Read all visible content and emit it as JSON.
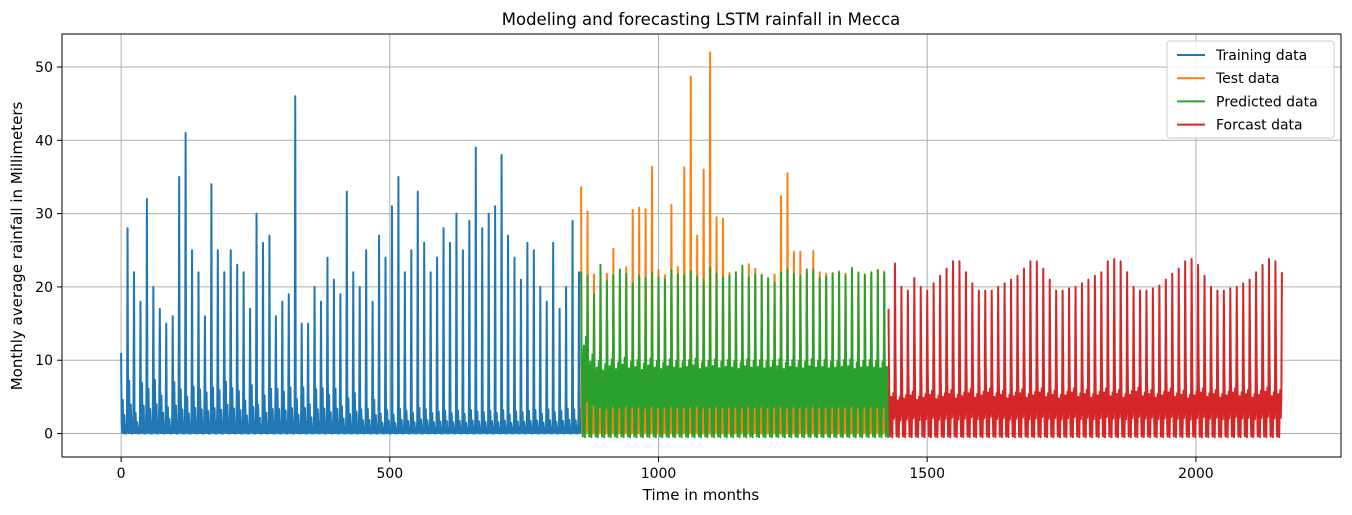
{
  "chart_data": {
    "type": "line",
    "title": "Modeling and forecasting LSTM  rainfall in Mecca",
    "xlabel": "Time in months",
    "ylabel": "Monthly average rainfall in Millimeters",
    "xlim": [
      -110,
      2270
    ],
    "ylim": [
      -3.2,
      54.5
    ],
    "xticks": [
      0,
      500,
      1000,
      1500,
      2000
    ],
    "yticks": [
      0,
      10,
      20,
      30,
      40,
      50
    ],
    "grid": true,
    "legend_position": "top-right",
    "period_months": 12,
    "series": [
      {
        "name": "Training data",
        "color": "#1f77b4",
        "x_range": [
          0,
          856
        ],
        "cycle_peaks": [
          11,
          28,
          22,
          18,
          32,
          20,
          17,
          15,
          16,
          35,
          41,
          25,
          22,
          16,
          34,
          25,
          22,
          25,
          23,
          22,
          17,
          30,
          26,
          27,
          16,
          18,
          19,
          46,
          15,
          15,
          20,
          18,
          24,
          21,
          19,
          33,
          22,
          20,
          25,
          18,
          27,
          24,
          31,
          35,
          22,
          25,
          33,
          26,
          22,
          24,
          28,
          26,
          30,
          25,
          29,
          39,
          28,
          30,
          31,
          38,
          27,
          24,
          21,
          26,
          25,
          20,
          18,
          26,
          17,
          20,
          29,
          22
        ],
        "cycle_secondary": [
          4.6,
          7.2,
          2.8,
          6.9,
          6.1,
          7.3,
          5.2,
          3.6,
          7.0,
          6.0,
          5.0,
          6.4,
          6.0,
          5.6,
          6.3,
          5.9,
          7.1,
          6.2,
          5.8,
          4.5,
          6.6,
          3.9,
          5.2,
          6.1,
          6.1,
          5.7,
          6.3,
          4.7,
          6.3,
          4.0,
          6.0,
          6.2,
          5.3,
          6.1,
          3.7,
          4.8,
          5.5,
          3.3,
          3.4,
          4.6,
          2.7,
          3.2,
          2.6,
          3.4,
          3.1,
          2.8,
          3.5,
          3.3,
          2.8,
          3.0,
          3.1,
          2.8,
          3.1,
          2.7,
          3.2,
          3.0,
          2.9,
          3.1,
          2.8,
          3.2,
          2.6,
          3.0,
          2.9,
          3.1,
          3.2,
          2.7,
          3.3,
          2.9,
          3.1,
          3.4,
          3.3,
          3.5
        ]
      },
      {
        "name": "Test data",
        "color": "#ff7f0e",
        "x_range": [
          856,
          1428
        ],
        "cycle_peaks": [
          33.7,
          30.3,
          21.7,
          20.4,
          21.8,
          25.2,
          20.4,
          22.7,
          30.5,
          30.8,
          30.6,
          36.4,
          22.3,
          21.6,
          31.2,
          22.7,
          36.3,
          48.7,
          27.0,
          36.0,
          52.0,
          29.5,
          29.3,
          21.9,
          21.2,
          21.4,
          23.1,
          22.5,
          21.7,
          20.8,
          21.7,
          32.4,
          35.5,
          24.8,
          24.8,
          22.0,
          24.9,
          22.0,
          21.8,
          21.9,
          22.1,
          21.8,
          22.0,
          22.0,
          21.6,
          21.9,
          22.3,
          22.1
        ],
        "cycle_secondary": [
          9.8,
          7.5,
          8.5,
          7.2,
          8.8,
          7.8,
          8.0,
          7.5,
          8.3,
          7.9,
          8.6,
          7.7,
          8.0,
          8.4,
          7.9,
          8.2,
          7.6,
          8.5,
          8.0,
          7.8,
          8.3,
          8.1,
          7.9,
          8.2,
          7.7,
          8.4,
          8.0,
          7.8,
          8.1,
          8.3,
          7.9,
          8.0,
          8.2,
          7.8,
          8.4,
          8.0,
          7.9,
          8.1,
          8.2,
          7.7,
          8.3,
          8.0,
          7.9,
          8.1,
          8.2,
          7.8,
          8.0,
          8.1
        ]
      },
      {
        "name": "Predicted data",
        "color": "#2ca02c",
        "x_range": [
          856,
          1428
        ],
        "cycle_peaks": [
          22.1,
          21.5,
          19.0,
          23.0,
          20.8,
          21.6,
          22.4,
          21.8,
          20.5,
          21.5,
          21.2,
          21.9,
          21.4,
          21.0,
          22.3,
          21.7,
          21.6,
          22.1,
          21.4,
          21.0,
          22.6,
          21.8,
          21.3,
          21.5,
          22.0,
          22.9,
          21.3,
          21.7,
          21.6,
          21.2,
          20.6,
          22.0,
          22.4,
          21.8,
          21.5,
          22.4,
          22.4,
          21.3,
          21.4,
          21.8,
          22.0,
          21.5,
          22.6,
          21.9,
          21.7,
          22.0,
          22.3,
          21.9
        ],
        "cycle_secondary": [
          12.0,
          9.8,
          9.0,
          8.6,
          9.2,
          8.8,
          9.4,
          8.9,
          9.1,
          8.7,
          9.3,
          9.0,
          8.8,
          9.2,
          9.0,
          8.9,
          9.1,
          9.3,
          8.8,
          9.0,
          9.2,
          8.9,
          9.1,
          9.0,
          8.8,
          9.2,
          9.0,
          9.1,
          8.9,
          9.0,
          9.2,
          8.8,
          9.1,
          9.0,
          8.9,
          9.2,
          9.0,
          9.1,
          8.9,
          9.0,
          9.1,
          9.2,
          8.8,
          9.0,
          9.1,
          9.0,
          8.9,
          9.1
        ]
      },
      {
        "name": "Forcast data",
        "color": "#d62728",
        "x_range": [
          1428,
          2160
        ],
        "cycle_peaks": [
          17.0,
          23.2,
          20.0,
          19.5,
          21.2,
          20.0,
          19.5,
          20.5,
          21.5,
          22.5,
          23.5,
          23.5,
          22.0,
          20.5,
          19.5,
          19.5,
          19.5,
          20.0,
          20.5,
          21.0,
          21.5,
          22.5,
          23.5,
          23.5,
          22.5,
          21.0,
          19.5,
          19.5,
          19.8,
          20.0,
          20.5,
          21.0,
          21.5,
          22.0,
          23.5,
          23.8,
          23.5,
          22.0,
          20.0,
          19.5,
          19.5,
          19.8,
          20.2,
          21.0,
          21.8,
          22.5,
          23.5,
          23.8,
          23.0,
          21.5,
          20.0,
          19.5,
          19.5,
          19.8,
          20.0,
          20.5,
          21.0,
          22.0,
          23.0,
          23.8,
          23.5,
          22.0,
          20.5,
          19.5
        ],
        "cycle_secondary": [
          5.0,
          4.5,
          4.8,
          5.2,
          4.6,
          4.9,
          5.3,
          4.7,
          5.0,
          5.4,
          4.8,
          5.1,
          5.5,
          4.9,
          5.2,
          5.6,
          5.0,
          5.3,
          4.8,
          5.1,
          5.5,
          4.9,
          5.2,
          5.6,
          5.0,
          5.3,
          4.8,
          5.2,
          5.6,
          5.0,
          5.4,
          4.9,
          5.2,
          5.6,
          5.1,
          5.4,
          4.9,
          5.3,
          5.7,
          5.1,
          5.4,
          4.9,
          5.2,
          5.6,
          5.0,
          5.3,
          4.8,
          5.2,
          5.6,
          5.0,
          5.4,
          4.9,
          5.2,
          5.6,
          5.1,
          5.4,
          4.9,
          5.3,
          5.7,
          5.1,
          5.4,
          4.9,
          5.2,
          5.5
        ]
      }
    ]
  }
}
